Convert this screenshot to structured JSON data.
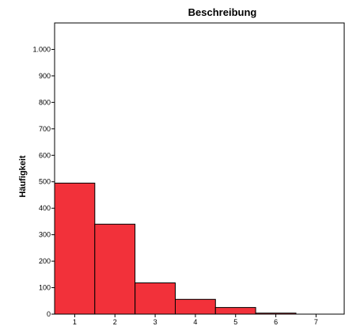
{
  "chart_data": {
    "type": "bar",
    "title": "Beschreibung",
    "xlabel": "",
    "ylabel": "Häufigkeit",
    "categories": [
      "1",
      "2",
      "3",
      "4",
      "5",
      "6",
      "7"
    ],
    "values": [
      495,
      340,
      118,
      56,
      25,
      4,
      0
    ],
    "ylim": [
      0,
      1100
    ],
    "xlim": [
      0.5,
      7.7
    ],
    "yticks": [
      0,
      100,
      200,
      300,
      400,
      500,
      600,
      700,
      800,
      900,
      1000
    ],
    "ytick_labels": [
      "0",
      "100",
      "200",
      "300",
      "400",
      "500",
      "600",
      "700",
      "800",
      "900",
      "1.000"
    ],
    "grid": false,
    "bar_color": "#f2313a",
    "bar_edge_color": "#000000"
  }
}
